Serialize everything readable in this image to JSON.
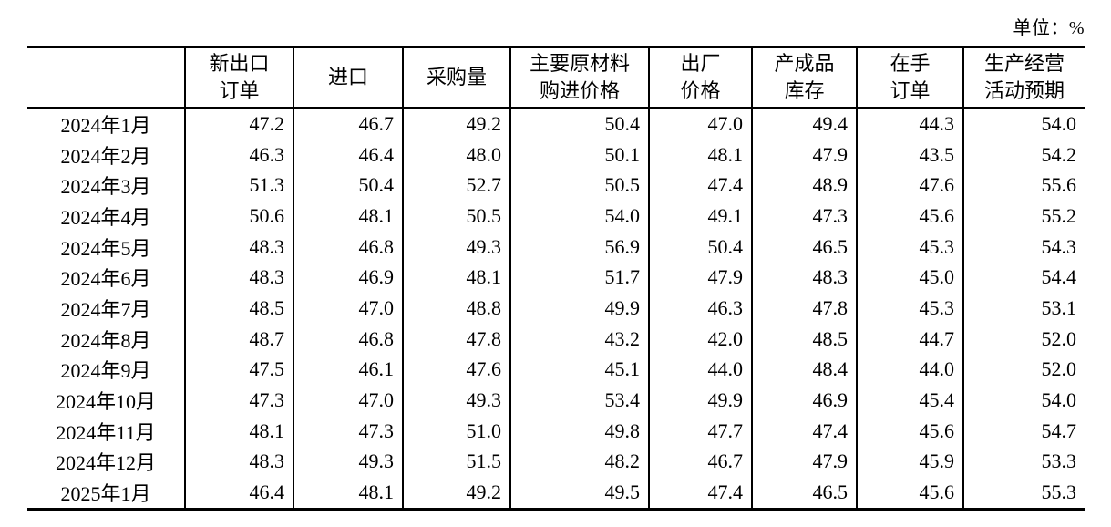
{
  "unit_label": "单位：%",
  "table": {
    "columns": [
      {
        "id": "month",
        "lines": [
          ""
        ]
      },
      {
        "id": "new-export-orders",
        "lines": [
          "新出口",
          "订单"
        ]
      },
      {
        "id": "imports",
        "lines": [
          "进口"
        ]
      },
      {
        "id": "purchasing-volume",
        "lines": [
          "采购量"
        ]
      },
      {
        "id": "main-raw-material-purchase-price",
        "lines": [
          "主要原材料",
          "购进价格"
        ]
      },
      {
        "id": "ex-factory-price",
        "lines": [
          "出厂",
          "价格"
        ]
      },
      {
        "id": "finished-goods-inventory",
        "lines": [
          "产成品",
          "库存"
        ]
      },
      {
        "id": "orders-on-hand",
        "lines": [
          "在手",
          "订单"
        ]
      },
      {
        "id": "production-business-activity-expectation",
        "lines": [
          "生产经营",
          "活动预期"
        ]
      }
    ],
    "rows": [
      {
        "month": "2024年1月",
        "values": [
          "47.2",
          "46.7",
          "49.2",
          "50.4",
          "47.0",
          "49.4",
          "44.3",
          "54.0"
        ]
      },
      {
        "month": "2024年2月",
        "values": [
          "46.3",
          "46.4",
          "48.0",
          "50.1",
          "48.1",
          "47.9",
          "43.5",
          "54.2"
        ]
      },
      {
        "month": "2024年3月",
        "values": [
          "51.3",
          "50.4",
          "52.7",
          "50.5",
          "47.4",
          "48.9",
          "47.6",
          "55.6"
        ]
      },
      {
        "month": "2024年4月",
        "values": [
          "50.6",
          "48.1",
          "50.5",
          "54.0",
          "49.1",
          "47.3",
          "45.6",
          "55.2"
        ]
      },
      {
        "month": "2024年5月",
        "values": [
          "48.3",
          "46.8",
          "49.3",
          "56.9",
          "50.4",
          "46.5",
          "45.3",
          "54.3"
        ]
      },
      {
        "month": "2024年6月",
        "values": [
          "48.3",
          "46.9",
          "48.1",
          "51.7",
          "47.9",
          "48.3",
          "45.0",
          "54.4"
        ]
      },
      {
        "month": "2024年7月",
        "values": [
          "48.5",
          "47.0",
          "48.8",
          "49.9",
          "46.3",
          "47.8",
          "45.3",
          "53.1"
        ]
      },
      {
        "month": "2024年8月",
        "values": [
          "48.7",
          "46.8",
          "47.8",
          "43.2",
          "42.0",
          "48.5",
          "44.7",
          "52.0"
        ]
      },
      {
        "month": "2024年9月",
        "values": [
          "47.5",
          "46.1",
          "47.6",
          "45.1",
          "44.0",
          "48.4",
          "44.0",
          "52.0"
        ]
      },
      {
        "month": "2024年10月",
        "values": [
          "47.3",
          "47.0",
          "49.3",
          "53.4",
          "49.9",
          "46.9",
          "45.4",
          "54.0"
        ]
      },
      {
        "month": "2024年11月",
        "values": [
          "48.1",
          "47.3",
          "51.0",
          "49.8",
          "47.7",
          "47.4",
          "45.6",
          "54.7"
        ]
      },
      {
        "month": "2024年12月",
        "values": [
          "48.3",
          "49.3",
          "51.5",
          "48.2",
          "46.7",
          "47.9",
          "45.9",
          "53.3"
        ]
      },
      {
        "month": "2025年1月",
        "values": [
          "46.4",
          "48.1",
          "49.2",
          "49.5",
          "47.4",
          "46.5",
          "45.6",
          "55.3"
        ]
      }
    ]
  }
}
